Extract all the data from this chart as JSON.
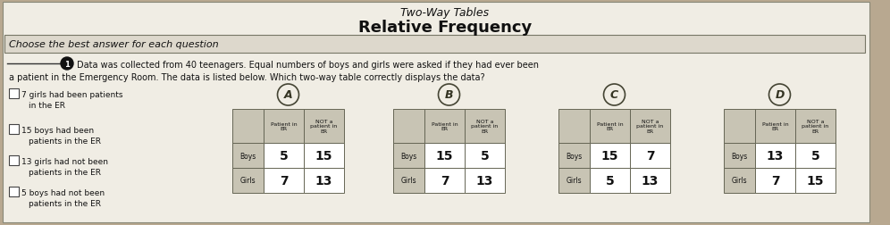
{
  "title1": "Two-Way Tables",
  "title2": "Relative Frequency",
  "header_text": "Choose the best answer for each question",
  "question_text_line1": "Data was collected from 40 teenagers. Equal numbers of boys and girls were asked if they had ever been",
  "question_text_line2": "a patient in the Emergency Room. The data is listed below. Which two-way table correctly displays the data?",
  "bullet_points": [
    [
      "7 girls had been patients",
      "in the ER"
    ],
    [
      "15 boys had been",
      "patients in the ER"
    ],
    [
      "13 girls had not been",
      "patients in the ER"
    ],
    [
      "5 boys had not been",
      "patients in the ER"
    ]
  ],
  "tables": [
    {
      "label": "A",
      "col_headers": [
        "Patient in\nER",
        "NOT a\npatient in\nER"
      ],
      "rows": [
        {
          "label": "Boys",
          "values": [
            5,
            15
          ]
        },
        {
          "label": "Girls",
          "values": [
            7,
            13
          ]
        }
      ]
    },
    {
      "label": "B",
      "col_headers": [
        "Patient in\nER",
        "NOT a\npatient in\nER"
      ],
      "rows": [
        {
          "label": "Boys",
          "values": [
            15,
            5
          ]
        },
        {
          "label": "Girls",
          "values": [
            7,
            13
          ]
        }
      ]
    },
    {
      "label": "C",
      "col_headers": [
        "Patient in\nER",
        "NOT a\npatient in\nER"
      ],
      "rows": [
        {
          "label": "Boys",
          "values": [
            15,
            7
          ]
        },
        {
          "label": "Girls",
          "values": [
            5,
            13
          ]
        }
      ]
    },
    {
      "label": "D",
      "col_headers": [
        "Patient in\nER",
        "NOT a\npatient in\nER"
      ],
      "rows": [
        {
          "label": "Boys",
          "values": [
            13,
            5
          ]
        },
        {
          "label": "Girls",
          "values": [
            7,
            15
          ]
        }
      ]
    }
  ],
  "bg_color": "#b8a890",
  "paper_color": "#f0ede4",
  "header_color": "#ddd8cc",
  "cell_header_color": "#c8c4b4",
  "cell_white": "#ffffff",
  "border_color": "#666655",
  "text_color": "#111111"
}
